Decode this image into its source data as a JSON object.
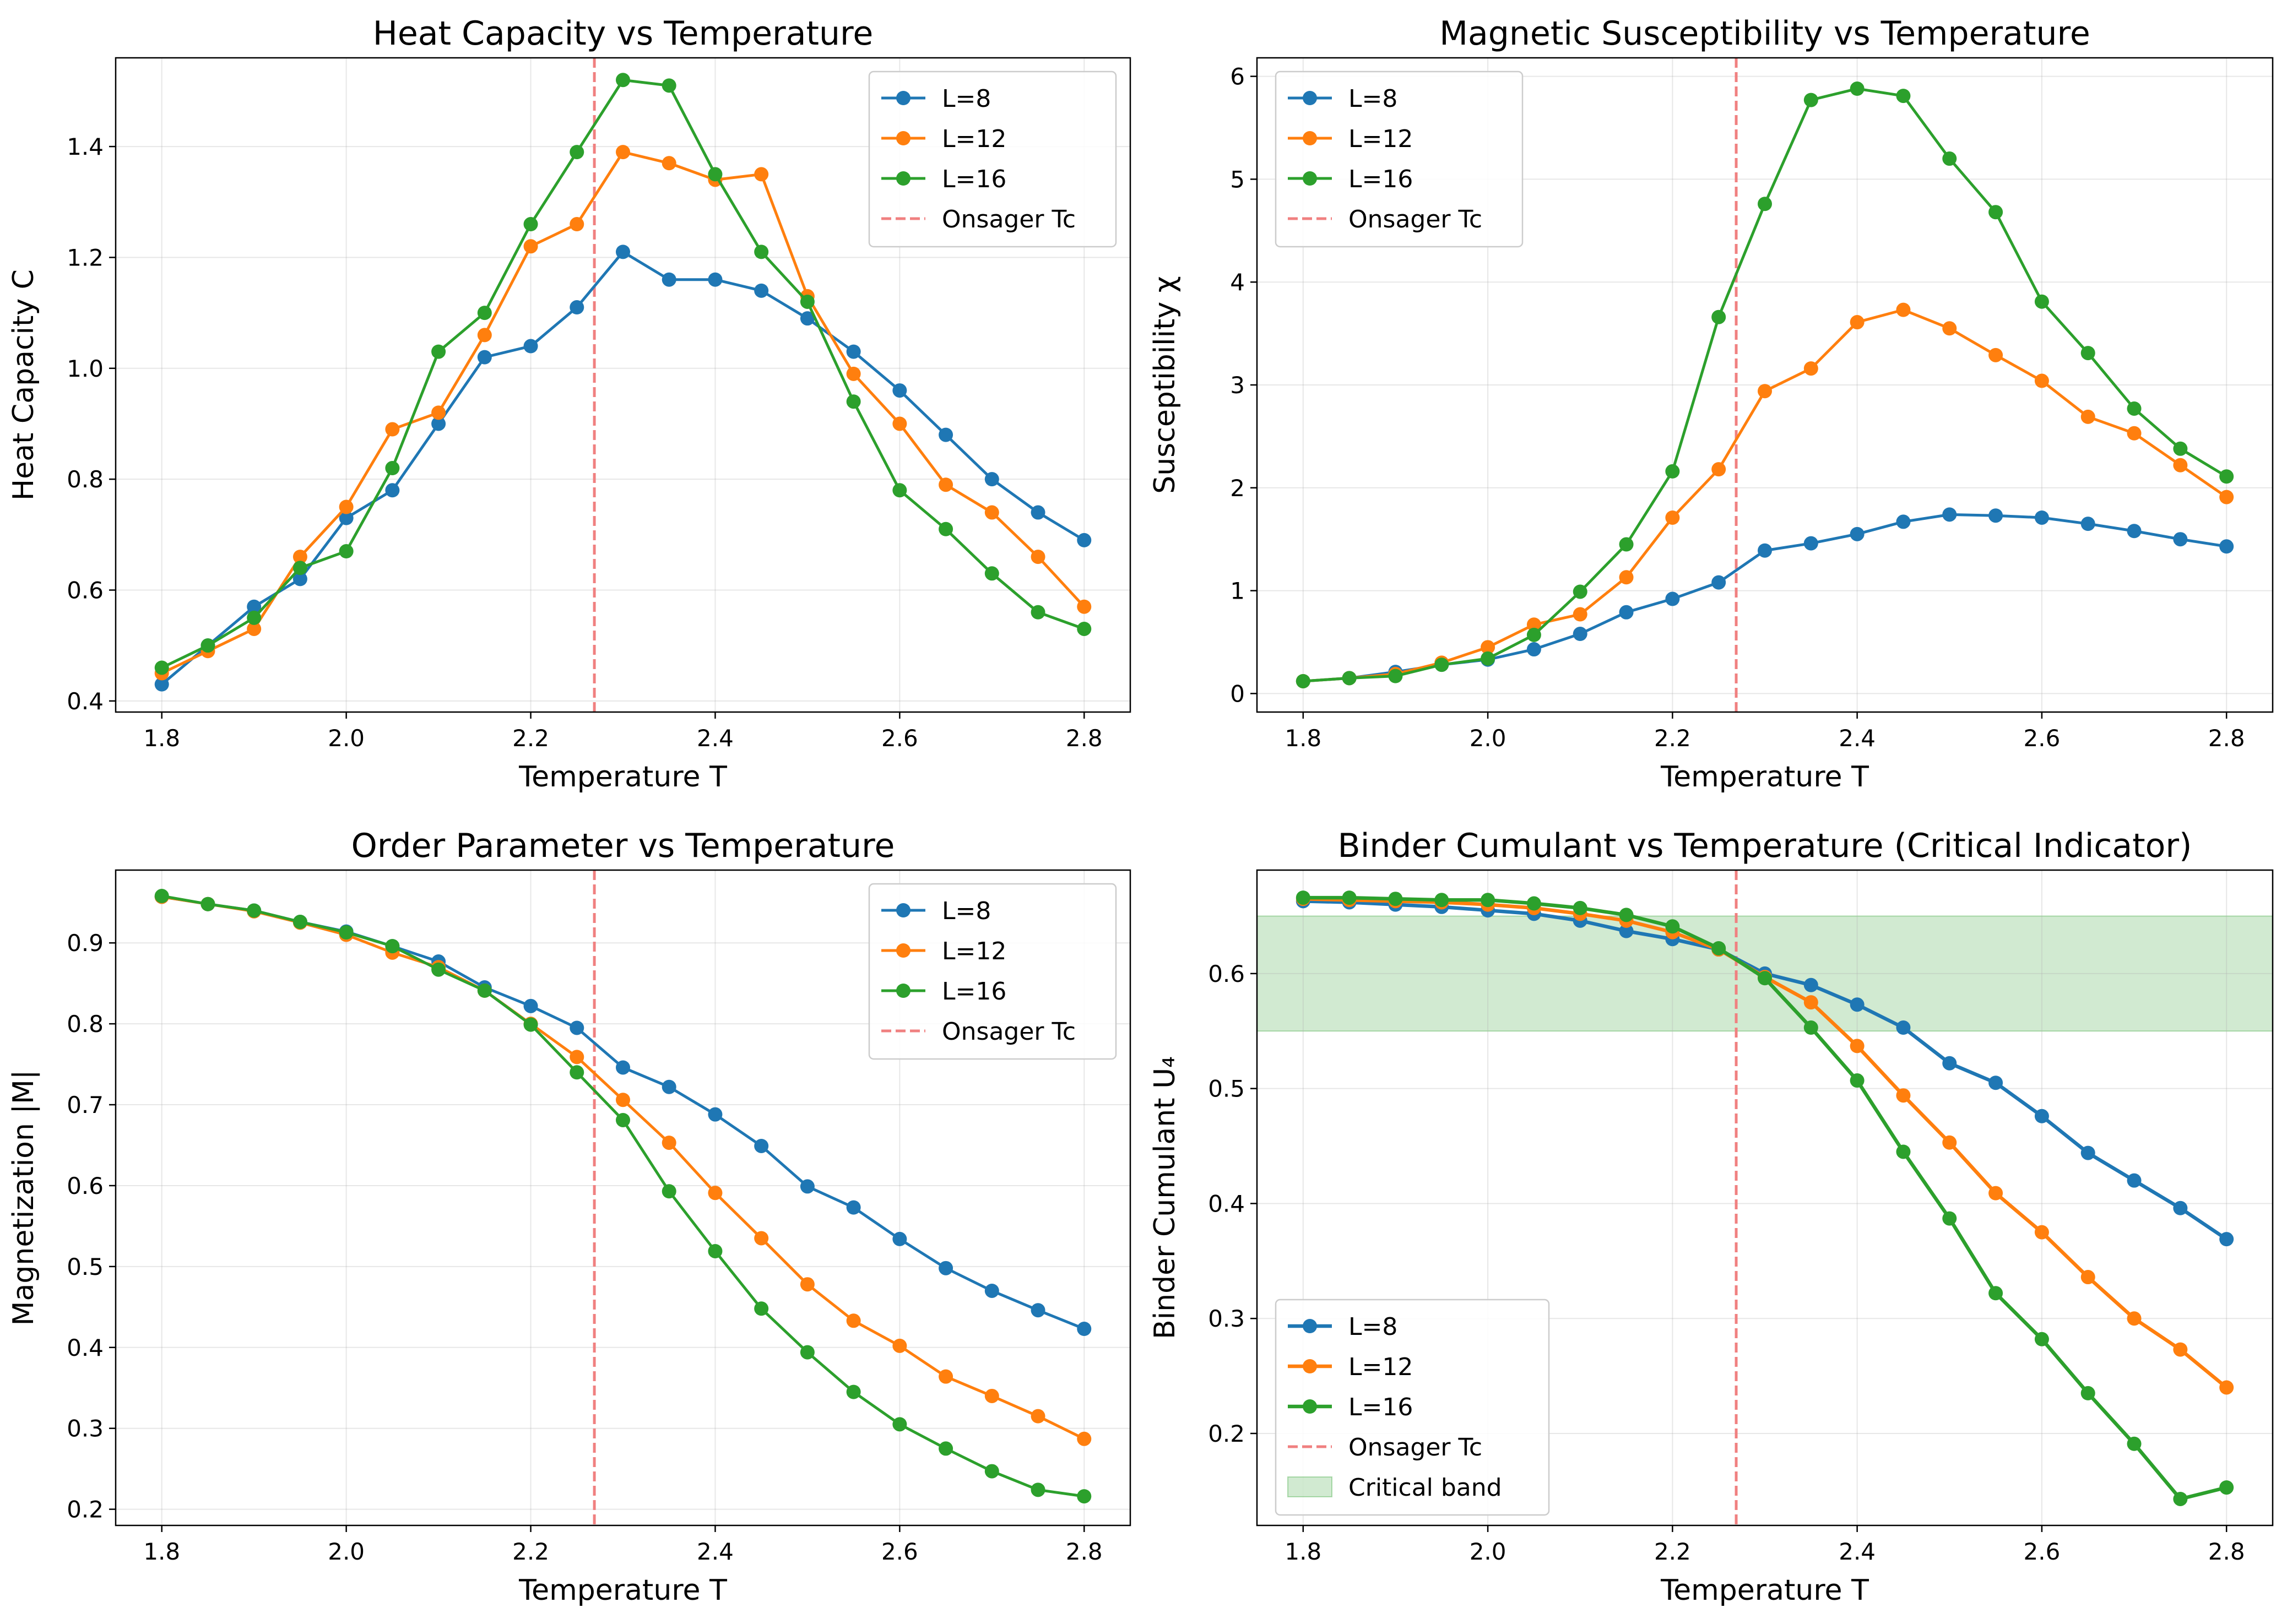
{
  "figure": {
    "colors": {
      "L8": "#1f77b4",
      "L12": "#ff7f0e",
      "L16": "#2ca02c",
      "onsager": "#f08080",
      "band": "#2ca02c"
    }
  },
  "chart_data": [
    {
      "type": "line",
      "title": "Heat Capacity vs Temperature",
      "xlabel": "Temperature T",
      "ylabel": "Heat Capacity C",
      "x": [
        1.8,
        1.85,
        1.9,
        1.95,
        2.0,
        2.05,
        2.1,
        2.15,
        2.2,
        2.25,
        2.3,
        2.35,
        2.4,
        2.45,
        2.5,
        2.55,
        2.6,
        2.65,
        2.7,
        2.75,
        2.8
      ],
      "xlim": [
        1.75,
        2.85
      ],
      "ylim": [
        0.38,
        1.56
      ],
      "xticks": [
        "1.8",
        "2.0",
        "2.2",
        "2.4",
        "2.6",
        "2.8"
      ],
      "yticks": [
        "0.4",
        "0.6",
        "0.8",
        "1.0",
        "1.2",
        "1.4"
      ],
      "grid": true,
      "legend_position": "upper right",
      "series": [
        {
          "name": "L=8",
          "values": [
            0.43,
            0.5,
            0.57,
            0.62,
            0.73,
            0.78,
            0.9,
            1.02,
            1.04,
            1.11,
            1.21,
            1.16,
            1.16,
            1.14,
            1.09,
            1.03,
            0.96,
            0.88,
            0.8,
            0.74,
            0.69
          ]
        },
        {
          "name": "L=12",
          "values": [
            0.45,
            0.49,
            0.53,
            0.66,
            0.75,
            0.89,
            0.92,
            1.06,
            1.22,
            1.26,
            1.39,
            1.37,
            1.34,
            1.35,
            1.13,
            0.99,
            0.9,
            0.79,
            0.74,
            0.66,
            0.57
          ]
        },
        {
          "name": "L=16",
          "values": [
            0.46,
            0.5,
            0.55,
            0.64,
            0.67,
            0.82,
            1.03,
            1.1,
            1.26,
            1.39,
            1.52,
            1.51,
            1.35,
            1.21,
            1.12,
            0.94,
            0.78,
            0.71,
            0.63,
            0.56,
            0.53
          ]
        }
      ],
      "vline": {
        "name": "Onsager Tc",
        "x": 2.269
      },
      "legend": [
        "L=8",
        "L=12",
        "L=16",
        "Onsager Tc"
      ]
    },
    {
      "type": "line",
      "title": "Magnetic Susceptibility vs Temperature",
      "xlabel": "Temperature T",
      "ylabel": "Susceptibility χ",
      "x": [
        1.8,
        1.85,
        1.9,
        1.95,
        2.0,
        2.05,
        2.1,
        2.15,
        2.2,
        2.25,
        2.3,
        2.35,
        2.4,
        2.45,
        2.5,
        2.55,
        2.6,
        2.65,
        2.7,
        2.75,
        2.8
      ],
      "xlim": [
        1.75,
        2.85
      ],
      "ylim": [
        -0.18,
        6.18
      ],
      "xticks": [
        "1.8",
        "2.0",
        "2.2",
        "2.4",
        "2.6",
        "2.8"
      ],
      "yticks": [
        "0",
        "1",
        "2",
        "3",
        "4",
        "5",
        "6"
      ],
      "grid": true,
      "legend_position": "upper left",
      "series": [
        {
          "name": "L=8",
          "values": [
            0.12,
            0.15,
            0.21,
            0.28,
            0.33,
            0.43,
            0.58,
            0.79,
            0.92,
            1.08,
            1.39,
            1.46,
            1.55,
            1.67,
            1.74,
            1.73,
            1.71,
            1.65,
            1.58,
            1.5,
            1.43
          ]
        },
        {
          "name": "L=12",
          "values": [
            0.12,
            0.15,
            0.19,
            0.3,
            0.45,
            0.67,
            0.77,
            1.13,
            1.71,
            2.18,
            2.94,
            3.16,
            3.61,
            3.73,
            3.55,
            3.29,
            3.04,
            2.69,
            2.53,
            2.22,
            1.91
          ]
        },
        {
          "name": "L=16",
          "values": [
            0.12,
            0.15,
            0.17,
            0.28,
            0.34,
            0.57,
            0.99,
            1.45,
            2.16,
            3.66,
            4.76,
            5.77,
            5.88,
            5.81,
            5.2,
            4.68,
            3.81,
            3.31,
            2.77,
            2.38,
            2.11
          ]
        }
      ],
      "vline": {
        "name": "Onsager Tc",
        "x": 2.269
      },
      "legend": [
        "L=8",
        "L=12",
        "L=16",
        "Onsager Tc"
      ]
    },
    {
      "type": "line",
      "title": "Order Parameter vs Temperature",
      "xlabel": "Temperature T",
      "ylabel": "Magnetization |M|",
      "x": [
        1.8,
        1.85,
        1.9,
        1.95,
        2.0,
        2.05,
        2.1,
        2.15,
        2.2,
        2.25,
        2.3,
        2.35,
        2.4,
        2.45,
        2.5,
        2.55,
        2.6,
        2.65,
        2.7,
        2.75,
        2.8
      ],
      "xlim": [
        1.75,
        2.85
      ],
      "ylim": [
        0.18,
        0.99
      ],
      "xticks": [
        "1.8",
        "2.0",
        "2.2",
        "2.4",
        "2.6",
        "2.8"
      ],
      "yticks": [
        "0.2",
        "0.3",
        "0.4",
        "0.5",
        "0.6",
        "0.7",
        "0.8",
        "0.9"
      ],
      "grid": true,
      "legend_position": "upper right",
      "series": [
        {
          "name": "L=8",
          "values": [
            0.957,
            0.948,
            0.94,
            0.926,
            0.914,
            0.896,
            0.877,
            0.845,
            0.822,
            0.795,
            0.746,
            0.722,
            0.688,
            0.649,
            0.599,
            0.573,
            0.534,
            0.498,
            0.47,
            0.446,
            0.423
          ]
        },
        {
          "name": "L=12",
          "values": [
            0.957,
            0.948,
            0.939,
            0.925,
            0.91,
            0.888,
            0.87,
            0.841,
            0.8,
            0.759,
            0.706,
            0.653,
            0.591,
            0.535,
            0.478,
            0.433,
            0.402,
            0.364,
            0.34,
            0.315,
            0.287
          ]
        },
        {
          "name": "L=16",
          "values": [
            0.958,
            0.948,
            0.94,
            0.926,
            0.913,
            0.896,
            0.867,
            0.841,
            0.799,
            0.74,
            0.681,
            0.593,
            0.519,
            0.448,
            0.394,
            0.345,
            0.305,
            0.275,
            0.247,
            0.224,
            0.216
          ]
        }
      ],
      "vline": {
        "name": "Onsager Tc",
        "x": 2.269
      },
      "legend": [
        "L=8",
        "L=12",
        "L=16",
        "Onsager Tc"
      ]
    },
    {
      "type": "line",
      "title": "Binder Cumulant vs Temperature (Critical Indicator)",
      "xlabel": "Temperature T",
      "ylabel": "Binder Cumulant U₄",
      "x": [
        1.8,
        1.85,
        1.9,
        1.95,
        2.0,
        2.05,
        2.1,
        2.15,
        2.2,
        2.25,
        2.3,
        2.35,
        2.4,
        2.45,
        2.5,
        2.55,
        2.6,
        2.65,
        2.7,
        2.75,
        2.8
      ],
      "xlim": [
        1.75,
        2.85
      ],
      "ylim": [
        0.12,
        0.69
      ],
      "xticks": [
        "1.8",
        "2.0",
        "2.2",
        "2.4",
        "2.6",
        "2.8"
      ],
      "yticks": [
        "0.2",
        "0.3",
        "0.4",
        "0.5",
        "0.6"
      ],
      "grid": true,
      "legend_position": "lower left",
      "band": {
        "name": "Critical band",
        "y_range": [
          0.55,
          0.65
        ]
      },
      "series": [
        {
          "name": "L=8",
          "values": [
            0.663,
            0.662,
            0.66,
            0.658,
            0.655,
            0.652,
            0.646,
            0.637,
            0.63,
            0.621,
            0.6,
            0.59,
            0.573,
            0.553,
            0.522,
            0.505,
            0.476,
            0.444,
            0.42,
            0.396,
            0.369
          ]
        },
        {
          "name": "L=12",
          "values": [
            0.665,
            0.664,
            0.663,
            0.662,
            0.66,
            0.657,
            0.652,
            0.646,
            0.636,
            0.621,
            0.597,
            0.575,
            0.537,
            0.494,
            0.453,
            0.409,
            0.375,
            0.336,
            0.3,
            0.273,
            0.24
          ]
        },
        {
          "name": "L=16",
          "values": [
            0.666,
            0.666,
            0.665,
            0.664,
            0.664,
            0.661,
            0.657,
            0.651,
            0.641,
            0.622,
            0.596,
            0.553,
            0.507,
            0.445,
            0.387,
            0.322,
            0.282,
            0.235,
            0.191,
            0.143,
            0.153
          ]
        }
      ],
      "vline": {
        "name": "Onsager Tc",
        "x": 2.269
      },
      "legend": [
        "L=8",
        "L=12",
        "L=16",
        "Onsager Tc",
        "Critical band"
      ]
    }
  ]
}
